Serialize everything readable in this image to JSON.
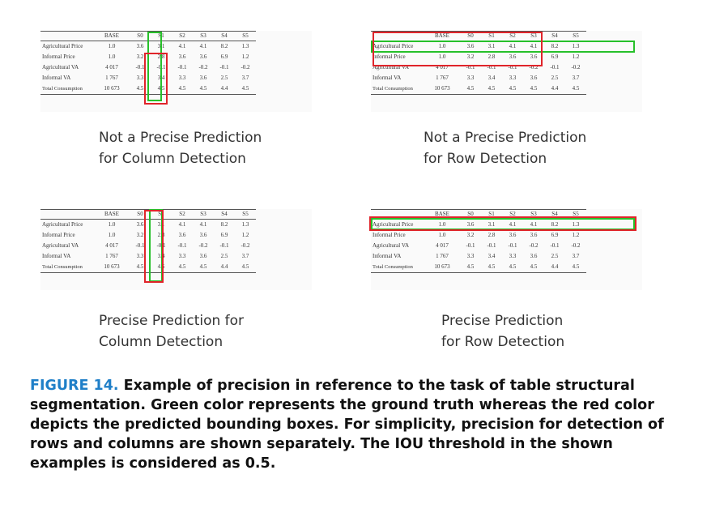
{
  "table": {
    "headers": [
      "",
      "BASE",
      "S0",
      "S1",
      "S2",
      "S3",
      "S4",
      "S5"
    ],
    "rows": [
      {
        "label": "Agricultural Price",
        "cells": [
          "1.0",
          "3.6",
          "3.1",
          "4.1",
          "4.1",
          "8.2",
          "1.3"
        ]
      },
      {
        "label": "Informal Price",
        "cells": [
          "1.0",
          "3.2",
          "2.8",
          "3.6",
          "3.6",
          "6.9",
          "1.2"
        ]
      },
      {
        "label": "Agricultural VA",
        "cells": [
          "4 017",
          "-0.1",
          "-0.1",
          "-0.1",
          "-0.2",
          "-0.1",
          "-0.2"
        ]
      },
      {
        "label": "Informal VA",
        "cells": [
          "1 767",
          "3.3",
          "3.4",
          "3.3",
          "3.6",
          "2.5",
          "3.7"
        ]
      },
      {
        "label": "Total Consumption",
        "cells": [
          "10 673",
          "4.5",
          "4.5",
          "4.5",
          "4.5",
          "4.4",
          "4.5"
        ]
      }
    ]
  },
  "panels": [
    {
      "caption": "Not a Precise Prediction\nfor Column Detection"
    },
    {
      "caption": "Not a Precise Prediction\nfor Row Detection"
    },
    {
      "caption": "Precise Prediction for\nColumn Detection"
    },
    {
      "caption": "Precise Prediction\nfor Row Detection"
    }
  ],
  "legend_colors": {
    "ground_truth": "#27c02a",
    "prediction": "#e0242a"
  },
  "figure": {
    "label": "FIGURE 14.",
    "text": "Example of precision in reference to the task of table structural segmentation. Green color represents the ground truth whereas the red color depicts the predicted bounding boxes. For simplicity, precision for detection of rows and columns are shown separately. The IOU threshold in the shown examples is considered as 0.5."
  }
}
